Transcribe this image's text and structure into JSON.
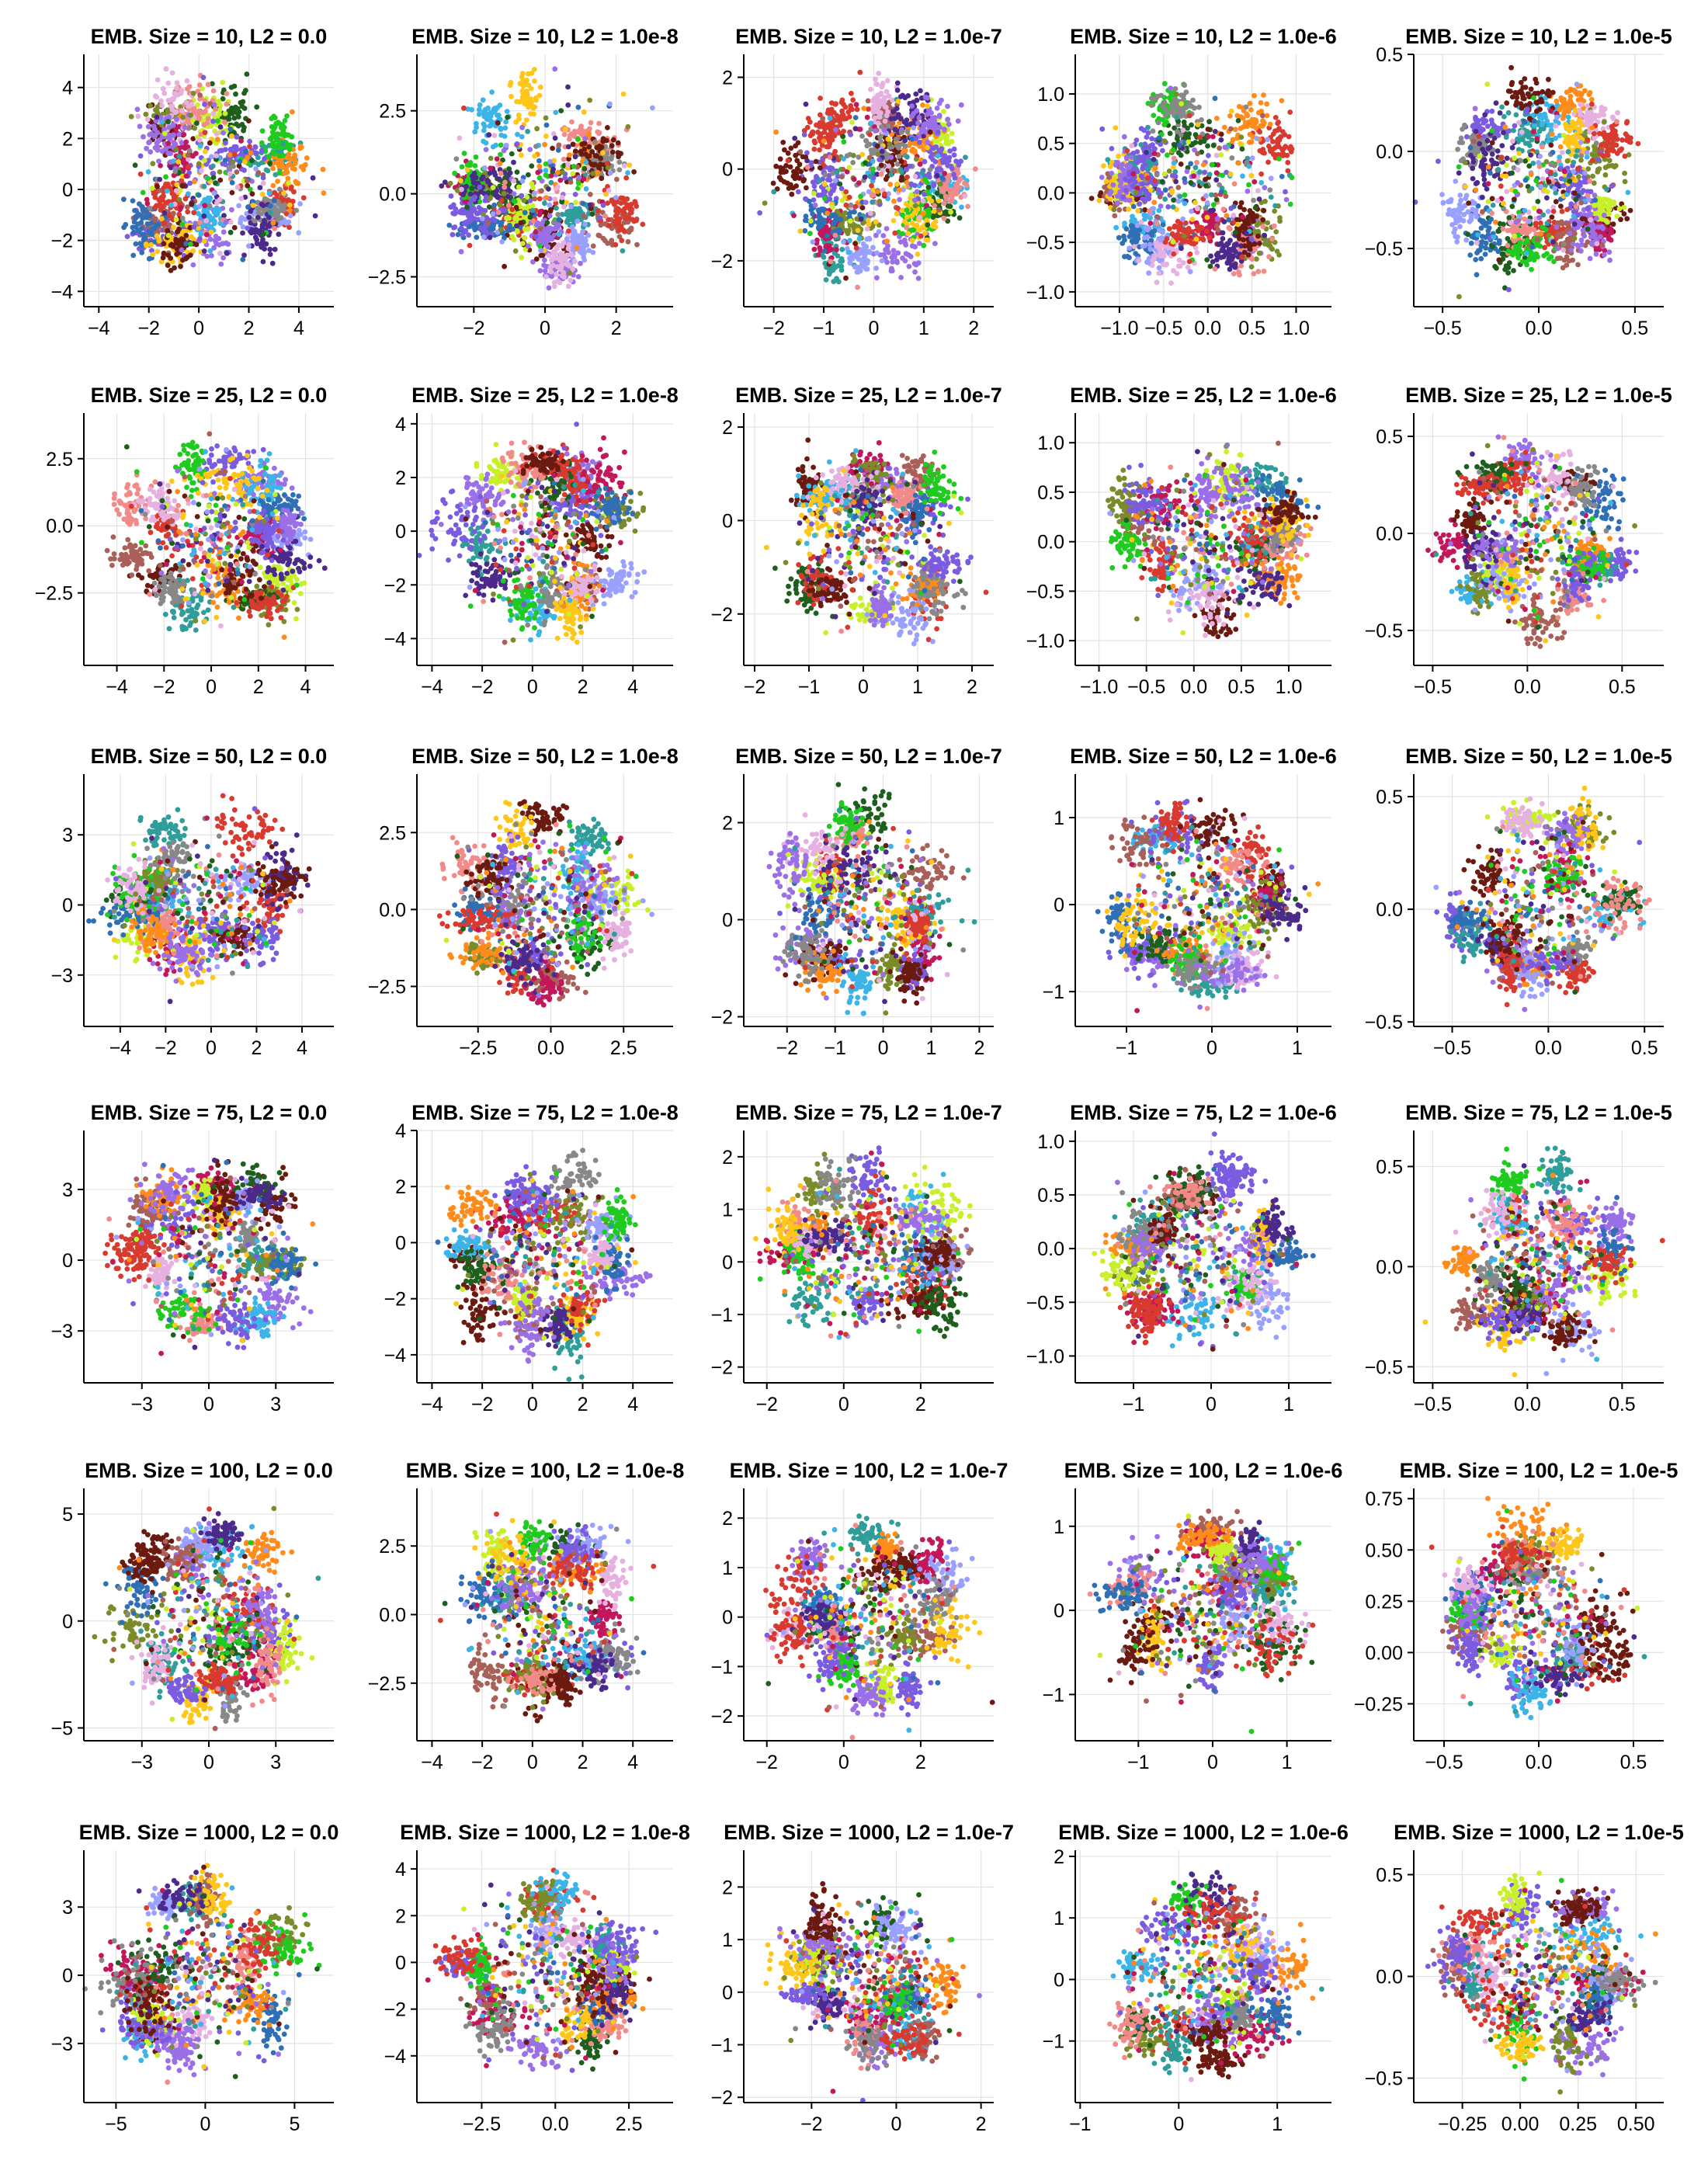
{
  "chart_data": {
    "type": "scatter",
    "grid": true,
    "legend": "none",
    "palette": [
      "#9b6fe8",
      "#7b5ce0",
      "#d93a2f",
      "#6b1a10",
      "#2f9e9a",
      "#3cb4e8",
      "#a96058",
      "#c2185b",
      "#7a8c2a",
      "#1e5f1e",
      "#c8f02a",
      "#f28a8a",
      "#2f6fb5",
      "#ff8c1a",
      "#9aa0ff",
      "#1ecb1e",
      "#888888",
      "#e6b0e0",
      "#ffc61a",
      "#4b2a8c"
    ],
    "rows": [
      {
        "emb_size": 10,
        "panels": [
          {
            "title": "EMB. Size = 10, L2 = 0.0",
            "xlim": [
              -4.6,
              5.4
            ],
            "ylim": [
              -4.6,
              5.3
            ],
            "xticks": [
              "-4",
              "-2",
              "0",
              "2",
              "4"
            ],
            "yticks": [
              "-4",
              "-2",
              "0",
              "2",
              "4"
            ]
          },
          {
            "title": "EMB. Size = 10, L2 = 1.0e-8",
            "xlim": [
              -3.6,
              3.6
            ],
            "ylim": [
              -3.4,
              4.2
            ],
            "xticks": [
              "-2",
              "0",
              "2"
            ],
            "yticks": [
              "-2.5",
              "0.0",
              "2.5"
            ]
          },
          {
            "title": "EMB. Size = 10, L2 = 1.0e-7",
            "xlim": [
              -2.6,
              2.4
            ],
            "ylim": [
              -3.0,
              2.5
            ],
            "xticks": [
              "-2",
              "-1",
              "0",
              "1",
              "2"
            ],
            "yticks": [
              "-2",
              "0",
              "2"
            ]
          },
          {
            "title": "EMB. Size = 10, L2 = 1.0e-6",
            "xlim": [
              -1.5,
              1.4
            ],
            "ylim": [
              -1.15,
              1.4
            ],
            "xticks": [
              "-1.0",
              "-0.5",
              "0.0",
              "0.5",
              "1.0"
            ],
            "yticks": [
              "-1.0",
              "-0.5",
              "0.0",
              "0.5",
              "1.0"
            ]
          },
          {
            "title": "EMB. Size = 10, L2 = 1.0e-5",
            "xlim": [
              -0.65,
              0.65
            ],
            "ylim": [
              -0.8,
              0.5
            ],
            "xticks": [
              "-0.5",
              "0.0",
              "0.5"
            ],
            "yticks": [
              "-0.5",
              "0.0",
              "0.5"
            ]
          }
        ]
      },
      {
        "emb_size": 25,
        "panels": [
          {
            "title": "EMB. Size = 25, L2 = 0.0",
            "xlim": [
              -5.4,
              5.2
            ],
            "ylim": [
              -5.2,
              4.2
            ],
            "xticks": [
              "-4",
              "-2",
              "0",
              "2",
              "4"
            ],
            "yticks": [
              "-2.5",
              "0.0",
              "2.5"
            ]
          },
          {
            "title": "EMB. Size = 25, L2 = 1.0e-8",
            "xlim": [
              -4.6,
              5.6
            ],
            "ylim": [
              -5.0,
              4.4
            ],
            "xticks": [
              "-4",
              "-2",
              "0",
              "2",
              "4"
            ],
            "yticks": [
              "-4",
              "-2",
              "0",
              "2",
              "4"
            ]
          },
          {
            "title": "EMB. Size = 25, L2 = 1.0e-7",
            "xlim": [
              -2.2,
              2.4
            ],
            "ylim": [
              -3.1,
              2.3
            ],
            "xticks": [
              "-2",
              "-1",
              "0",
              "1",
              "2"
            ],
            "yticks": [
              "-2",
              "0",
              "2"
            ]
          },
          {
            "title": "EMB. Size = 25, L2 = 1.0e-6",
            "xlim": [
              -1.25,
              1.45
            ],
            "ylim": [
              -1.25,
              1.3
            ],
            "xticks": [
              "-1.0",
              "-0.5",
              "0.0",
              "0.5",
              "1.0"
            ],
            "yticks": [
              "-1.0",
              "-0.5",
              "0.0",
              "0.5",
              "1.0"
            ]
          },
          {
            "title": "EMB. Size = 25, L2 = 1.0e-5",
            "xlim": [
              -0.6,
              0.72
            ],
            "ylim": [
              -0.68,
              0.62
            ],
            "xticks": [
              "-0.5",
              "0.0",
              "0.5"
            ],
            "yticks": [
              "-0.5",
              "0.0",
              "0.5"
            ]
          }
        ]
      },
      {
        "emb_size": 50,
        "panels": [
          {
            "title": "EMB. Size = 50, L2 = 0.0",
            "xlim": [
              -5.6,
              5.4
            ],
            "ylim": [
              -5.2,
              5.6
            ],
            "xticks": [
              "-4",
              "-2",
              "0",
              "2",
              "4"
            ],
            "yticks": [
              "-3",
              "0",
              "3"
            ]
          },
          {
            "title": "EMB. Size = 50, L2 = 1.0e-8",
            "xlim": [
              -4.6,
              4.2
            ],
            "ylim": [
              -3.8,
              4.4
            ],
            "xticks": [
              "-2.5",
              "0.0",
              "2.5"
            ],
            "yticks": [
              "-2.5",
              "0.0",
              "2.5"
            ]
          },
          {
            "title": "EMB. Size = 50, L2 = 1.0e-7",
            "xlim": [
              -2.9,
              2.3
            ],
            "ylim": [
              -2.2,
              3.0
            ],
            "xticks": [
              "-2",
              "-1",
              "0",
              "1",
              "2"
            ],
            "yticks": [
              "-2",
              "0",
              "2"
            ]
          },
          {
            "title": "EMB. Size = 50, L2 = 1.0e-6",
            "xlim": [
              -1.6,
              1.4
            ],
            "ylim": [
              -1.4,
              1.5
            ],
            "xticks": [
              "-1",
              "0",
              "1"
            ],
            "yticks": [
              "-1",
              "0",
              "1"
            ]
          },
          {
            "title": "EMB. Size = 50, L2 = 1.0e-5",
            "xlim": [
              -0.7,
              0.6
            ],
            "ylim": [
              -0.52,
              0.6
            ],
            "xticks": [
              "-0.5",
              "0.0",
              "0.5"
            ],
            "yticks": [
              "-0.5",
              "0.0",
              "0.5"
            ]
          }
        ]
      },
      {
        "emb_size": 75,
        "panels": [
          {
            "title": "EMB. Size = 75, L2 = 0.0",
            "xlim": [
              -5.6,
              5.6
            ],
            "ylim": [
              -5.2,
              5.5
            ],
            "xticks": [
              "-3",
              "0",
              "3"
            ],
            "yticks": [
              "-3",
              "0",
              "3"
            ]
          },
          {
            "title": "EMB. Size = 75, L2 = 1.0e-8",
            "xlim": [
              -4.6,
              5.6
            ],
            "ylim": [
              -5.0,
              4.0
            ],
            "xticks": [
              "-4",
              "-2",
              "0",
              "2",
              "4"
            ],
            "yticks": [
              "-4",
              "-2",
              "0",
              "2",
              "4"
            ]
          },
          {
            "title": "EMB. Size = 75, L2 = 1.0e-7",
            "xlim": [
              -2.6,
              3.9
            ],
            "ylim": [
              -2.3,
              2.5
            ],
            "xticks": [
              "-2",
              "0",
              "2"
            ],
            "yticks": [
              "-2",
              "-1",
              "0",
              "1",
              "2"
            ]
          },
          {
            "title": "EMB. Size = 75, L2 = 1.0e-6",
            "xlim": [
              -1.75,
              1.55
            ],
            "ylim": [
              -1.25,
              1.1
            ],
            "xticks": [
              "-1",
              "0",
              "1"
            ],
            "yticks": [
              "-1.0",
              "-0.5",
              "0.0",
              "0.5",
              "1.0"
            ]
          },
          {
            "title": "EMB. Size = 75, L2 = 1.0e-5",
            "xlim": [
              -0.6,
              0.72
            ],
            "ylim": [
              -0.58,
              0.68
            ],
            "xticks": [
              "-0.5",
              "0.0",
              "0.5"
            ],
            "yticks": [
              "-0.5",
              "0.0",
              "0.5"
            ]
          }
        ]
      },
      {
        "emb_size": 100,
        "panels": [
          {
            "title": "EMB. Size = 100, L2 = 0.0",
            "xlim": [
              -5.6,
              5.6
            ],
            "ylim": [
              -5.6,
              6.2
            ],
            "xticks": [
              "-3",
              "0",
              "3"
            ],
            "yticks": [
              "-5",
              "0",
              "5"
            ]
          },
          {
            "title": "EMB. Size = 100, L2 = 1.0e-8",
            "xlim": [
              -4.6,
              5.6
            ],
            "ylim": [
              -4.6,
              4.6
            ],
            "xticks": [
              "-4",
              "-2",
              "0",
              "2",
              "4"
            ],
            "yticks": [
              "-2.5",
              "0.0",
              "2.5"
            ]
          },
          {
            "title": "EMB. Size = 100, L2 = 1.0e-7",
            "xlim": [
              -2.6,
              3.9
            ],
            "ylim": [
              -2.5,
              2.6
            ],
            "xticks": [
              "-2",
              "0",
              "2"
            ],
            "yticks": [
              "-2",
              "-1",
              "0",
              "1",
              "2"
            ]
          },
          {
            "title": "EMB. Size = 100, L2 = 1.0e-6",
            "xlim": [
              -1.85,
              1.6
            ],
            "ylim": [
              -1.55,
              1.45
            ],
            "xticks": [
              "-1",
              "0",
              "1"
            ],
            "yticks": [
              "-1",
              "0",
              "1"
            ]
          },
          {
            "title": "EMB. Size = 100, L2 = 1.0e-5",
            "xlim": [
              -0.66,
              0.66
            ],
            "ylim": [
              -0.43,
              0.8
            ],
            "xticks": [
              "-0.5",
              "0.0",
              "0.5"
            ],
            "yticks": [
              "-0.25",
              "0.00",
              "0.25",
              "0.50",
              "0.75"
            ]
          }
        ]
      },
      {
        "emb_size": 1000,
        "panels": [
          {
            "title": "EMB. Size = 1000, L2 = 0.0",
            "xlim": [
              -6.8,
              7.2
            ],
            "ylim": [
              -5.6,
              5.5
            ],
            "xticks": [
              "-5",
              "0",
              "5"
            ],
            "yticks": [
              "-3",
              "0",
              "3"
            ]
          },
          {
            "title": "EMB. Size = 1000, L2 = 1.0e-8",
            "xlim": [
              -4.7,
              4.0
            ],
            "ylim": [
              -6.0,
              4.8
            ],
            "xticks": [
              "-2.5",
              "0.0",
              "2.5"
            ],
            "yticks": [
              "-4",
              "-2",
              "0",
              "2",
              "4"
            ]
          },
          {
            "title": "EMB. Size = 1000, L2 = 1.0e-7",
            "xlim": [
              -3.6,
              2.3
            ],
            "ylim": [
              -2.1,
              2.7
            ],
            "xticks": [
              "-2",
              "0",
              "2"
            ],
            "yticks": [
              "-2",
              "-1",
              "0",
              "1",
              "2"
            ]
          },
          {
            "title": "EMB. Size = 1000, L2 = 1.0e-6",
            "xlim": [
              -1.05,
              1.55
            ],
            "ylim": [
              -2.0,
              2.1
            ],
            "xticks": [
              "-1",
              "0",
              "1"
            ],
            "yticks": [
              "-1",
              "0",
              "1",
              "2"
            ]
          },
          {
            "title": "EMB. Size = 1000, L2 = 1.0e-5",
            "xlim": [
              -0.46,
              0.62
            ],
            "ylim": [
              -0.62,
              0.62
            ],
            "xticks": [
              "-0.25",
              "0.00",
              "0.25",
              "0.50"
            ],
            "yticks": [
              "-0.5",
              "0.0",
              "0.5"
            ]
          }
        ]
      }
    ]
  }
}
